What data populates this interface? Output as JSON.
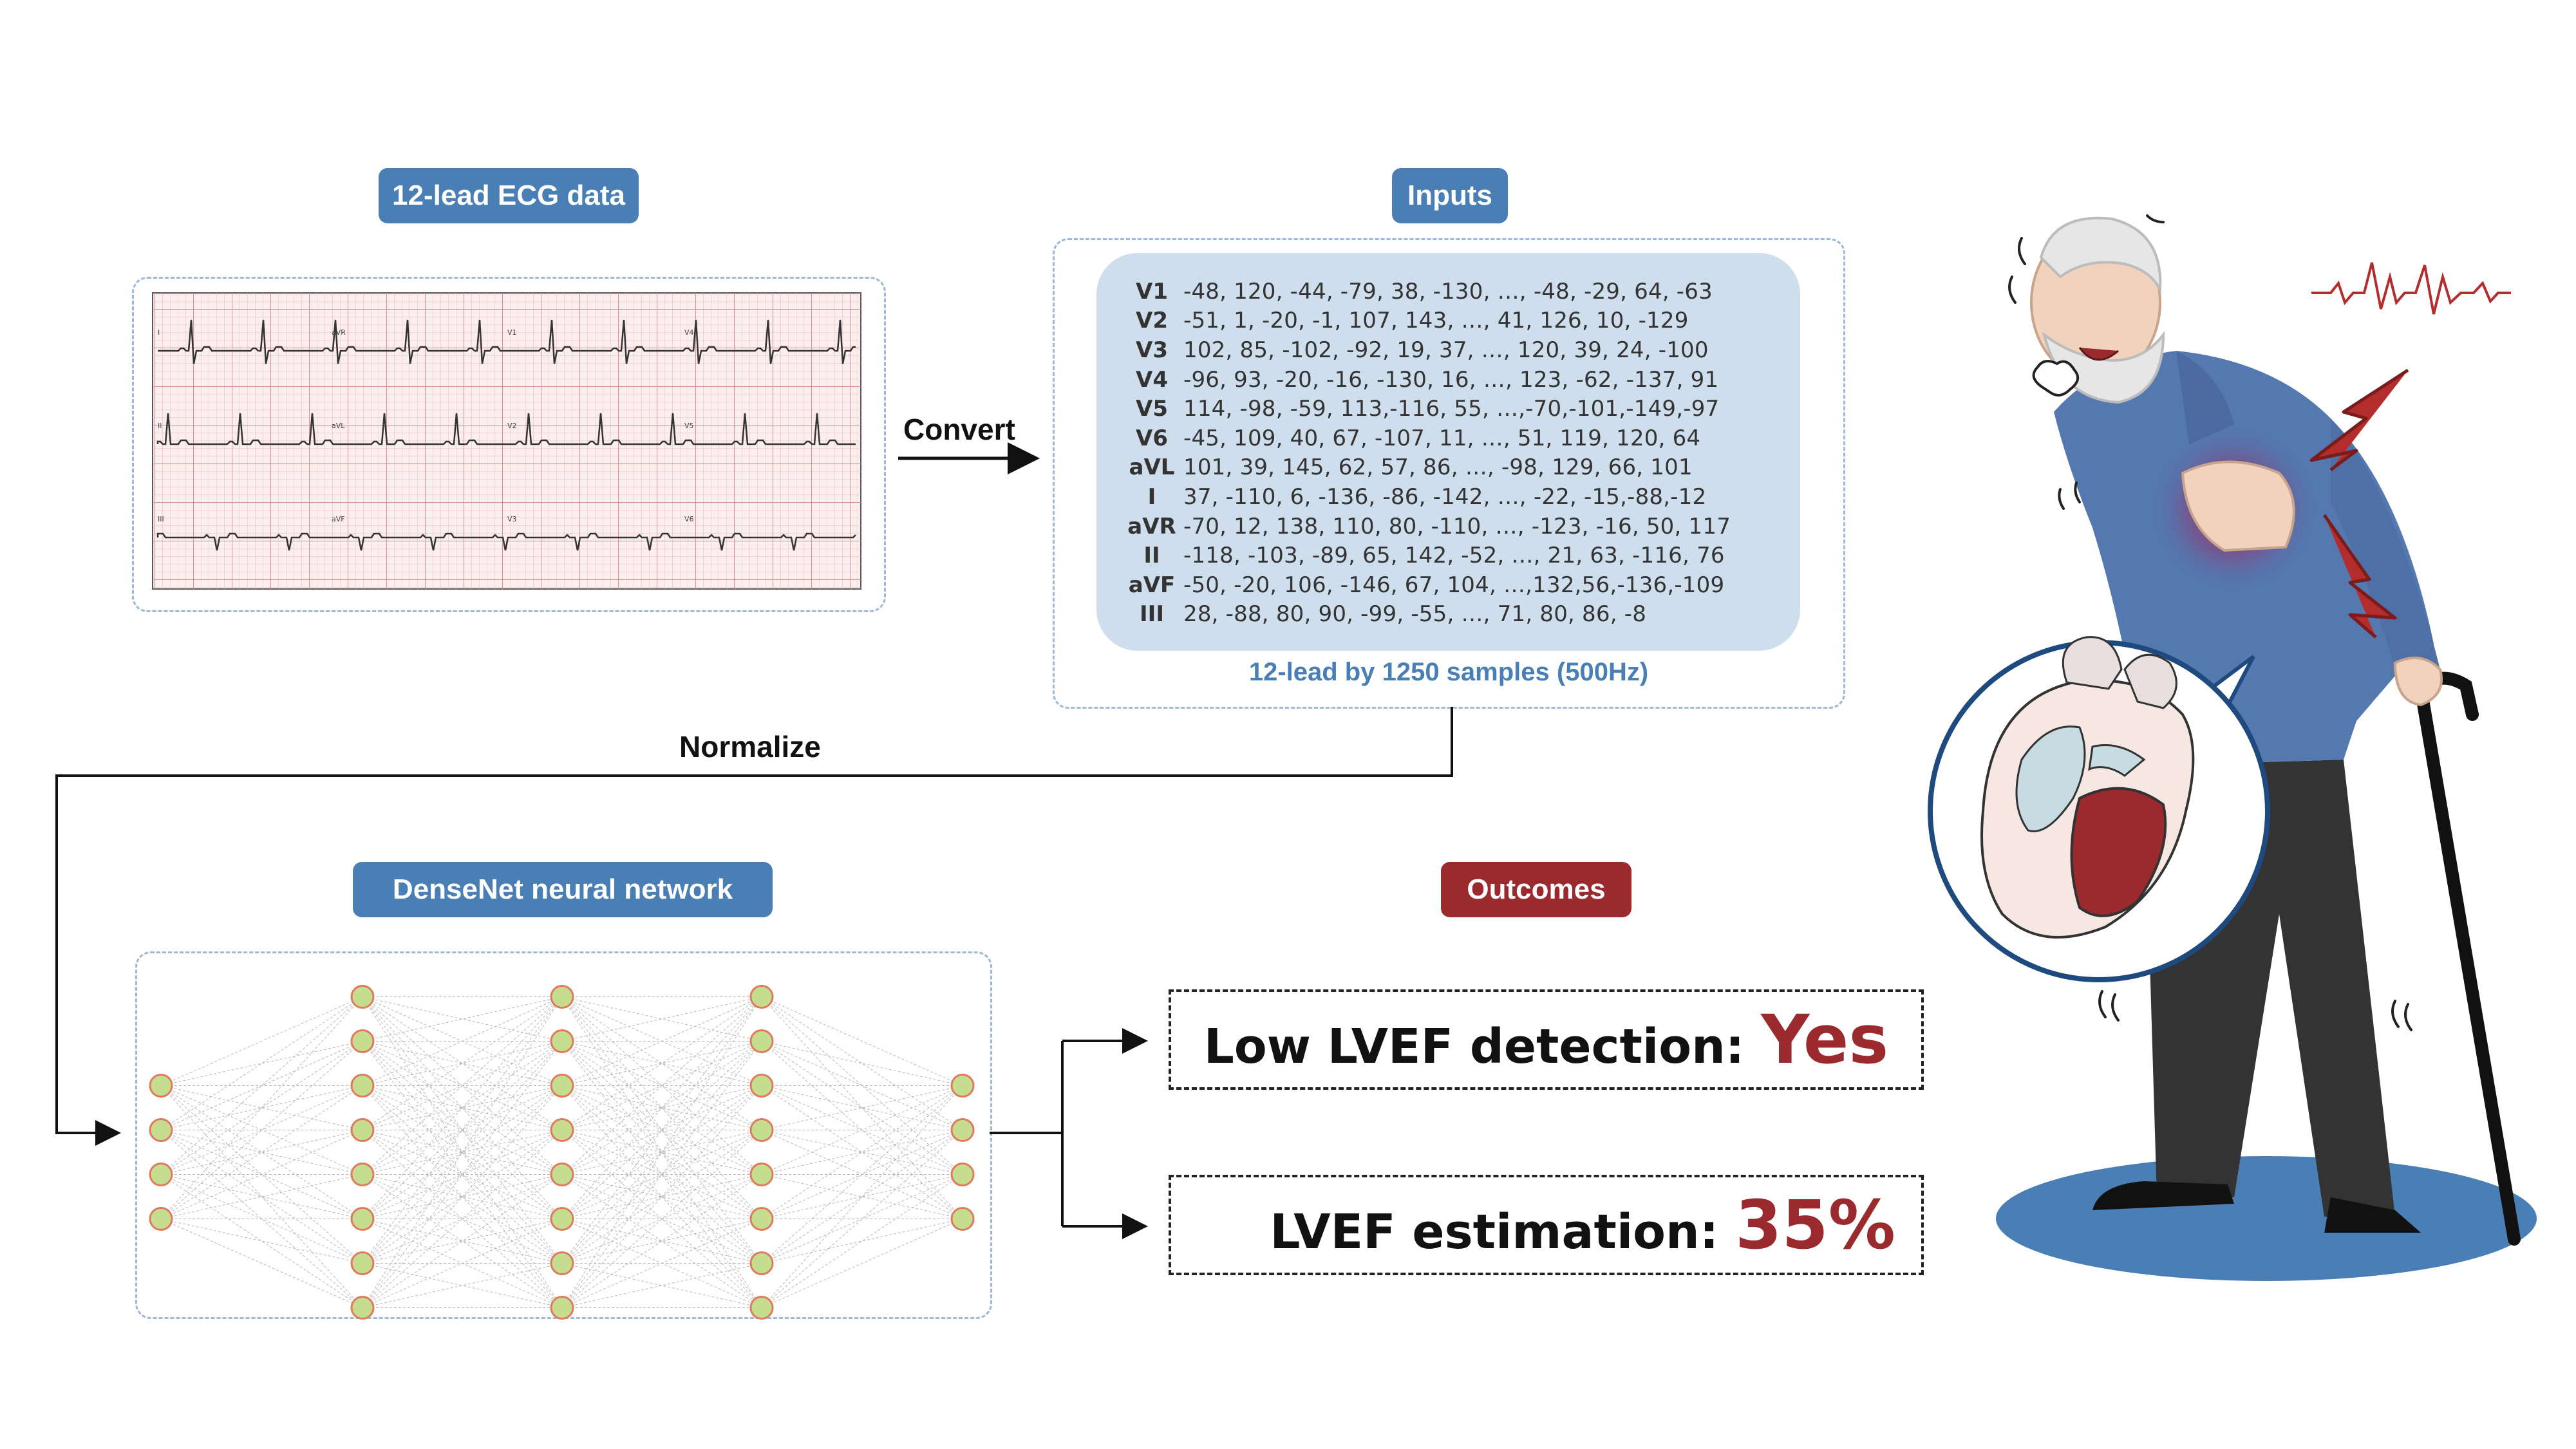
{
  "labels": {
    "ecg_data": "12-lead ECG data",
    "inputs": "Inputs",
    "densenet": "DenseNet neural network",
    "outcomes": "Outcomes",
    "convert": "Convert",
    "normalize": "Normalize",
    "inputs_caption": "12-lead by 1250 samples (500Hz)"
  },
  "inputs_rows": [
    {
      "lead": "V1",
      "values": "-48,  120,  -44,  -79,  38,  -130,  …,  -48,  -29,  64,  -63"
    },
    {
      "lead": "V2",
      "values": "-51,  1,  -20,  -1,  107,  143,  …,  41,  126,  10,  -129"
    },
    {
      "lead": "V3",
      "values": "102,  85,  -102,  -92,  19,  37,  …,  120,  39,  24,  -100"
    },
    {
      "lead": "V4",
      "values": "-96,  93,  -20,  -16,  -130,  16,  …,  123,  -62,  -137,  91"
    },
    {
      "lead": "V5",
      "values": "114,  -98,  -59,  113,-116,  55,  …,-70,-101,-149,-97"
    },
    {
      "lead": "V6",
      "values": "-45,  109,  40,  67,  -107,  11,  …,  51,  119,  120,  64"
    },
    {
      "lead": "aVL",
      "values": "101,  39,  145,  62,  57,  86,  …,  -98,  129,  66,  101"
    },
    {
      "lead": "I",
      "values": "37,  -110,  6,  -136,  -86,  -142,  …,  -22,  -15,-88,-12"
    },
    {
      "lead": "aVR",
      "values": "-70,  12,  138,  110,  80,  -110,  …,  -123,  -16,  50,  117"
    },
    {
      "lead": "II",
      "values": "-118,  -103,  -89,  65,  142,  -52,  …,  21,  63,  -116,  76"
    },
    {
      "lead": "aVF",
      "values": "-50,  -20,  106,  -146,  67,  104,  …,132,56,-136,-109"
    },
    {
      "lead": "III",
      "values": "28,  -88,  80,  90,  -99,  -55,  …,  71,  80,  86,  -8"
    }
  ],
  "outcomes": {
    "detection_label": "Low LVEF detection:",
    "detection_value": "Yes",
    "estimation_label": "LVEF estimation:",
    "estimation_value": "35%"
  },
  "ecg_lead_marks": [
    "I",
    "aVR",
    "V1",
    "V4",
    "II",
    "aVL",
    "V2",
    "V5",
    "III",
    "aVF",
    "V3",
    "V6"
  ],
  "network_layers": [
    4,
    8,
    8,
    8,
    4
  ],
  "colors": {
    "pill_blue": "#4a7fb5",
    "pill_red": "#9a2a2e",
    "panel_blue": "#cfdeec",
    "accent_red": "#9a2a2e",
    "node_fill": "#c5dd8f",
    "node_stroke": "#e07a5f",
    "ground_blue": "#4a7fb5"
  },
  "icons": [
    "ecg-paper-icon",
    "neural-network-icon",
    "patient-chest-pain-icon",
    "heart-cross-section-icon",
    "heartbeat-line-icon",
    "lightning-bolt-icon"
  ]
}
